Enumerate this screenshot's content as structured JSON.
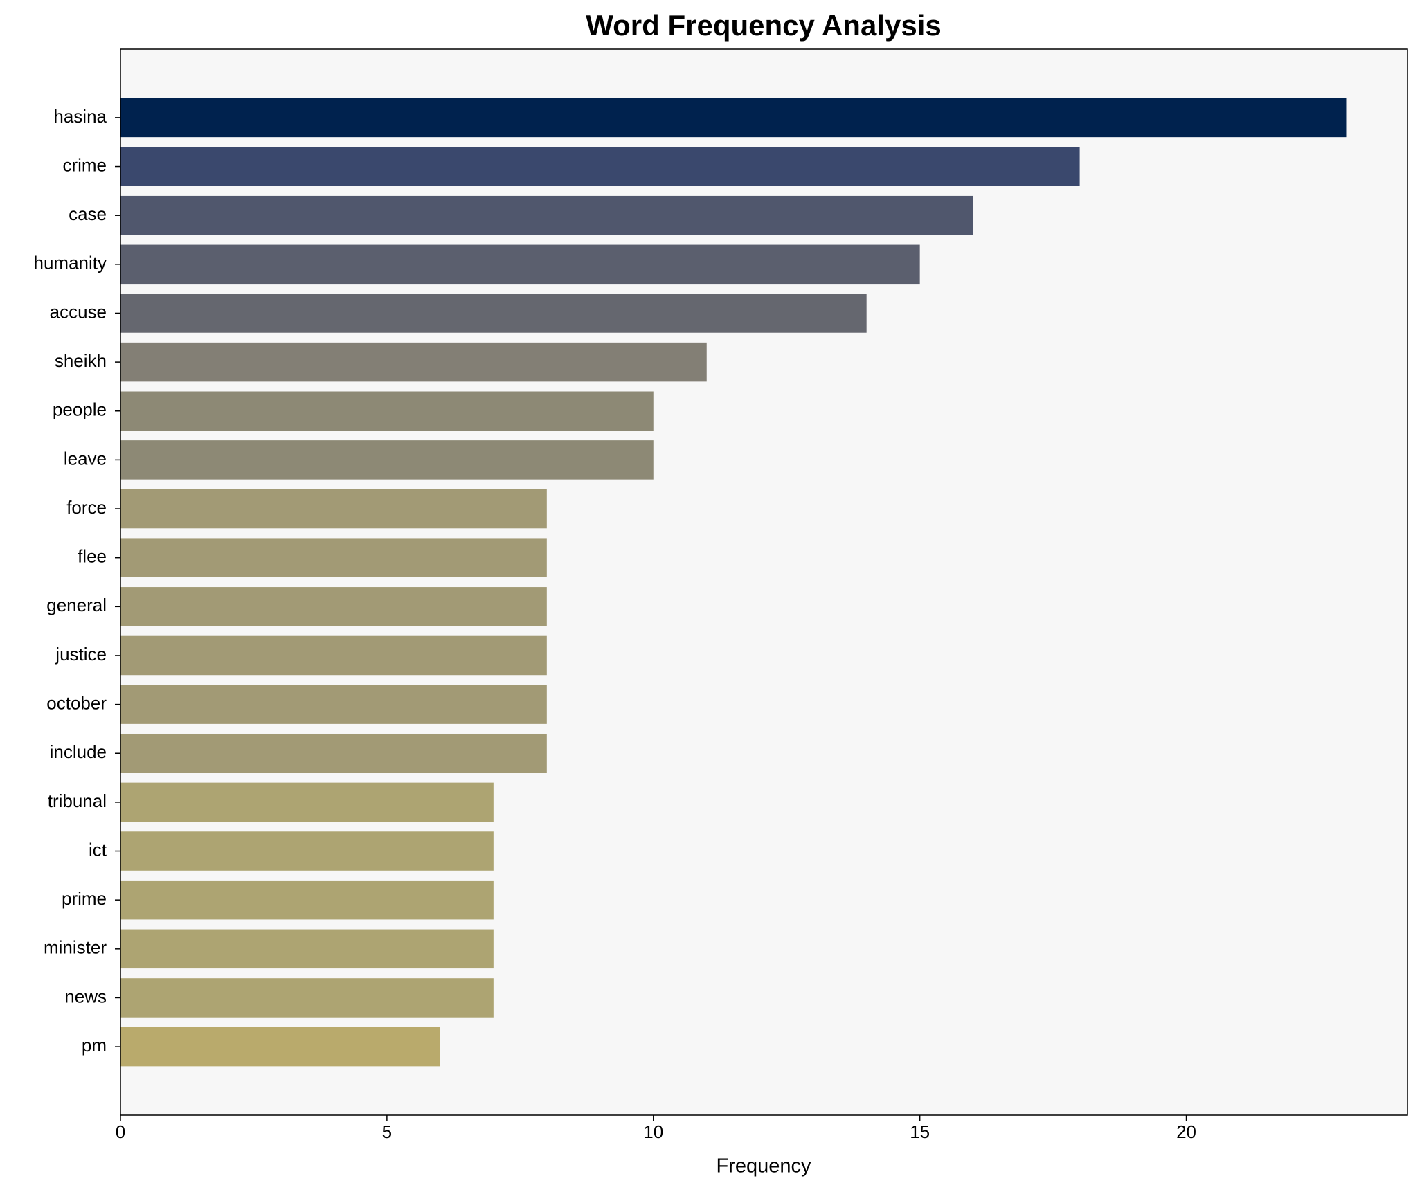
{
  "chart_data": {
    "type": "barh",
    "title": "Word Frequency Analysis",
    "x_label": "Frequency",
    "categories": [
      "hasina",
      "crime",
      "case",
      "humanity",
      "accuse",
      "sheikh",
      "people",
      "leave",
      "force",
      "flee",
      "general",
      "justice",
      "october",
      "include",
      "tribunal",
      "ict",
      "prime",
      "minister",
      "news",
      "pm"
    ],
    "values": [
      23,
      18,
      16,
      15,
      14,
      11,
      10,
      10,
      8,
      8,
      8,
      8,
      8,
      8,
      7,
      7,
      7,
      7,
      7,
      6
    ],
    "colors": [
      "#00224e",
      "#3a486d",
      "#50576d",
      "#5b5f6e",
      "#65676f",
      "#837f75",
      "#8d8975",
      "#8d8975",
      "#a29a75",
      "#a29a75",
      "#a29a75",
      "#a29a75",
      "#a29a75",
      "#a29a75",
      "#ada472",
      "#ada472",
      "#ada472",
      "#ada472",
      "#ada472",
      "#b9aa6c"
    ],
    "xlim": [
      0,
      24.15
    ],
    "xticks": [
      0,
      5,
      10,
      15,
      20
    ],
    "grid": false
  }
}
